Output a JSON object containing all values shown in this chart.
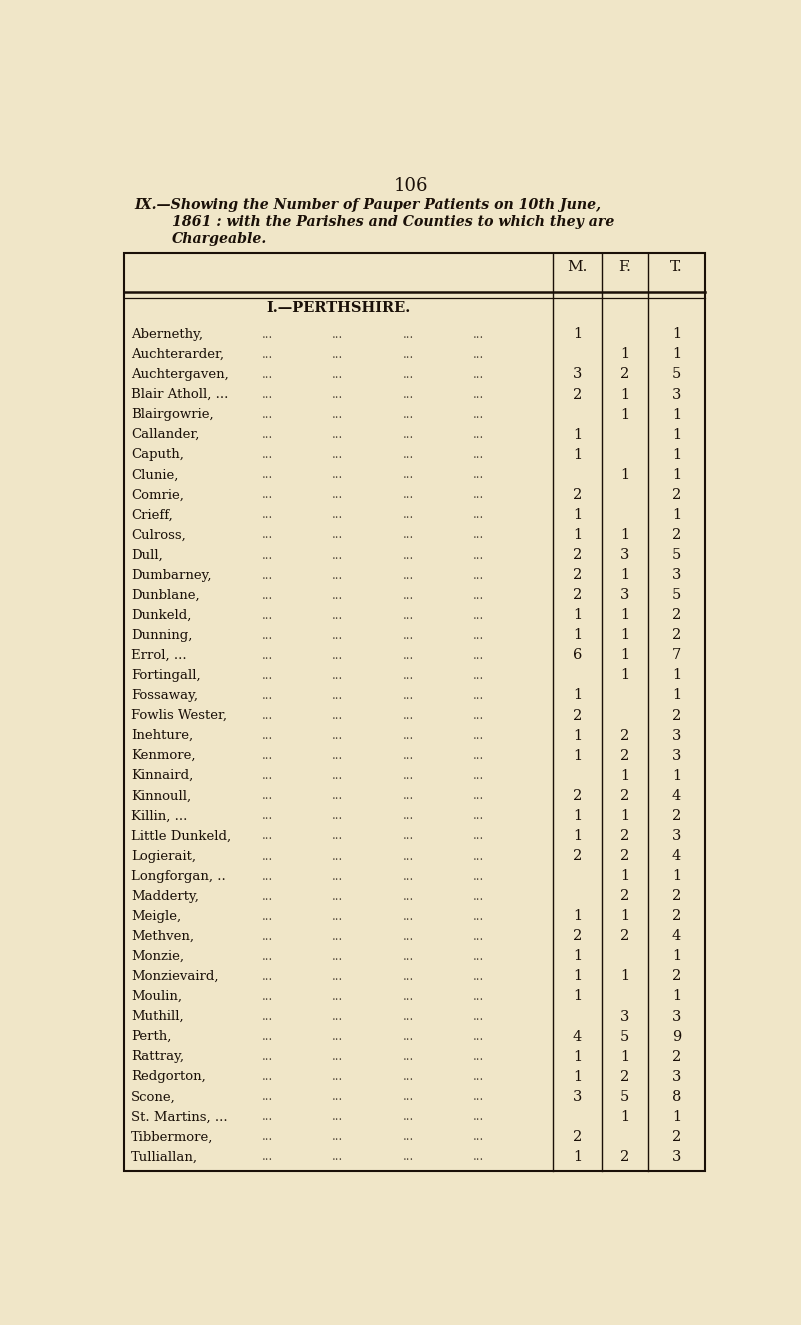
{
  "page_number": "106",
  "title_line1": "IX.—Showing the Number of Pauper Patients on 10th June,",
  "title_line2": "1861 : with the Parishes and Counties to which they are",
  "title_line3": "Chargeable.",
  "section_header": "I.—PERTHSHIRE.",
  "col_headers": [
    "M.",
    "F.",
    "T."
  ],
  "bg_color": "#f0e6c8",
  "text_color": "#1a1008",
  "rows": [
    {
      "parish": "Abernethy,",
      "M": "1",
      "F": "",
      "T": "1"
    },
    {
      "parish": "Auchterarder,",
      "M": "",
      "F": "1",
      "T": "1"
    },
    {
      "parish": "Auchtergaven,",
      "M": "3",
      "F": "2",
      "T": "5"
    },
    {
      "parish": "Blair Atholl, ...",
      "M": "2",
      "F": "1",
      "T": "3"
    },
    {
      "parish": "Blairgowrie,",
      "M": "",
      "F": "1",
      "T": "1"
    },
    {
      "parish": "Callander,",
      "M": "1",
      "F": "",
      "T": "1"
    },
    {
      "parish": "Caputh,",
      "M": "1",
      "F": "",
      "T": "1"
    },
    {
      "parish": "Clunie,",
      "M": "",
      "F": "1",
      "T": "1"
    },
    {
      "parish": "Comrie,",
      "M": "2",
      "F": "",
      "T": "2"
    },
    {
      "parish": "Crieff,",
      "M": "1",
      "F": "",
      "T": "1"
    },
    {
      "parish": "Culross,",
      "M": "1",
      "F": "1",
      "T": "2"
    },
    {
      "parish": "Dull,",
      "M": "2",
      "F": "3",
      "T": "5"
    },
    {
      "parish": "Dumbarney,",
      "M": "2",
      "F": "1",
      "T": "3"
    },
    {
      "parish": "Dunblane,",
      "M": "2",
      "F": "3",
      "T": "5"
    },
    {
      "parish": "Dunkeld,",
      "M": "1",
      "F": "1",
      "T": "2"
    },
    {
      "parish": "Dunning,",
      "M": "1",
      "F": "1",
      "T": "2"
    },
    {
      "parish": "Errol, ...",
      "M": "6",
      "F": "1",
      "T": "7"
    },
    {
      "parish": "Fortingall,",
      "M": "",
      "F": "1",
      "T": "1"
    },
    {
      "parish": "Fossaway,",
      "M": "1",
      "F": "",
      "T": "1"
    },
    {
      "parish": "Fowlis Wester,",
      "M": "2",
      "F": "",
      "T": "2"
    },
    {
      "parish": "Inehture,",
      "M": "1",
      "F": "2",
      "T": "3"
    },
    {
      "parish": "Kenmore,",
      "M": "1",
      "F": "2",
      "T": "3"
    },
    {
      "parish": "Kinnaird,",
      "M": "",
      "F": "1",
      "T": "1"
    },
    {
      "parish": "Kinnoull,",
      "M": "2",
      "F": "2",
      "T": "4"
    },
    {
      "parish": "Killin, ...",
      "M": "1",
      "F": "1",
      "T": "2"
    },
    {
      "parish": "Little Dunkeld,",
      "M": "1",
      "F": "2",
      "T": "3"
    },
    {
      "parish": "Logierait,",
      "M": "2",
      "F": "2",
      "T": "4"
    },
    {
      "parish": "Longforgan, ..",
      "M": "",
      "F": "1",
      "T": "1"
    },
    {
      "parish": "Madderty,",
      "M": "",
      "F": "2",
      "T": "2"
    },
    {
      "parish": "Meigle,",
      "M": "1",
      "F": "1",
      "T": "2"
    },
    {
      "parish": "Methven,",
      "M": "2",
      "F": "2",
      "T": "4"
    },
    {
      "parish": "Monzie,",
      "M": "1",
      "F": "",
      "T": "1"
    },
    {
      "parish": "Monzievaird,",
      "M": "1",
      "F": "1",
      "T": "2"
    },
    {
      "parish": "Moulin,",
      "M": "1",
      "F": "",
      "T": "1"
    },
    {
      "parish": "Muthill,",
      "M": "",
      "F": "3",
      "T": "3"
    },
    {
      "parish": "Perth,",
      "M": "4",
      "F": "5",
      "T": "9"
    },
    {
      "parish": "Rattray,",
      "M": "1",
      "F": "1",
      "T": "2"
    },
    {
      "parish": "Redgorton,",
      "M": "1",
      "F": "2",
      "T": "3"
    },
    {
      "parish": "Scone,",
      "M": "3",
      "F": "5",
      "T": "8"
    },
    {
      "parish": "St. Martins, ...",
      "M": "",
      "F": "1",
      "T": "1"
    },
    {
      "parish": "Tibbermore,",
      "M": "2",
      "F": "",
      "T": "2"
    },
    {
      "parish": "Tulliallan,",
      "M": "1",
      "F": "2",
      "T": "3"
    }
  ]
}
